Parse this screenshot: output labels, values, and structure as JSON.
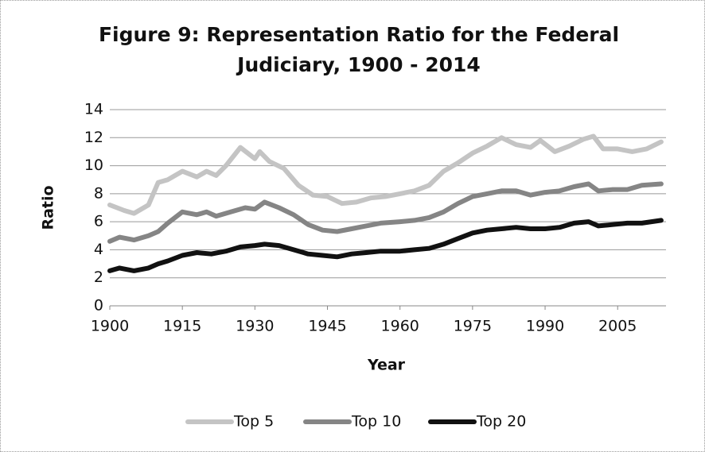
{
  "chart_data": {
    "type": "line",
    "title": "Figure 9: Representation Ratio for the Federal Judiciary, 1900 - 2014",
    "xlabel": "Year",
    "ylabel": "Ratio",
    "xlim": [
      1900,
      2015
    ],
    "xticks": [
      1900,
      1915,
      1930,
      1945,
      1960,
      1975,
      1990,
      2005
    ],
    "ylim": [
      0,
      14
    ],
    "yticks": [
      0,
      2,
      4,
      6,
      8,
      10,
      12,
      14
    ],
    "grid": true,
    "legend": "bottom",
    "series": [
      {
        "name": "Top 5",
        "color": "#c4c4c4",
        "x": [
          1900,
          1903,
          1905,
          1908,
          1910,
          1912,
          1915,
          1918,
          1920,
          1922,
          1924,
          1927,
          1930,
          1931,
          1933,
          1936,
          1939,
          1942,
          1945,
          1948,
          1951,
          1954,
          1957,
          1960,
          1963,
          1966,
          1969,
          1972,
          1975,
          1978,
          1981,
          1984,
          1987,
          1989,
          1992,
          1995,
          1998,
          2000,
          2002,
          2005,
          2008,
          2011,
          2014
        ],
        "values": [
          7.2,
          6.8,
          6.6,
          7.2,
          8.8,
          9.0,
          9.6,
          9.2,
          9.6,
          9.3,
          10.0,
          11.3,
          10.5,
          11.0,
          10.3,
          9.8,
          8.6,
          7.9,
          7.8,
          7.3,
          7.4,
          7.7,
          7.8,
          8.0,
          8.2,
          8.6,
          9.6,
          10.2,
          10.9,
          11.4,
          12.0,
          11.5,
          11.3,
          11.8,
          11.0,
          11.4,
          11.9,
          12.1,
          11.2,
          11.2,
          11.0,
          11.2,
          11.7
        ]
      },
      {
        "name": "Top 10",
        "color": "#858585",
        "x": [
          1900,
          1902,
          1905,
          1908,
          1910,
          1912,
          1915,
          1918,
          1920,
          1922,
          1925,
          1928,
          1930,
          1932,
          1935,
          1938,
          1941,
          1944,
          1947,
          1950,
          1953,
          1956,
          1960,
          1963,
          1966,
          1969,
          1972,
          1975,
          1978,
          1981,
          1984,
          1987,
          1990,
          1993,
          1996,
          1999,
          2001,
          2004,
          2007,
          2010,
          2014
        ],
        "values": [
          4.6,
          4.9,
          4.7,
          5.0,
          5.3,
          5.9,
          6.7,
          6.5,
          6.7,
          6.4,
          6.7,
          7.0,
          6.9,
          7.4,
          7.0,
          6.5,
          5.8,
          5.4,
          5.3,
          5.5,
          5.7,
          5.9,
          6.0,
          6.1,
          6.3,
          6.7,
          7.3,
          7.8,
          8.0,
          8.2,
          8.2,
          7.9,
          8.1,
          8.2,
          8.5,
          8.7,
          8.2,
          8.3,
          8.3,
          8.6,
          8.7
        ]
      },
      {
        "name": "Top 20",
        "color": "#111111",
        "x": [
          1900,
          1902,
          1905,
          1908,
          1910,
          1912,
          1915,
          1918,
          1921,
          1924,
          1927,
          1930,
          1932,
          1935,
          1938,
          1941,
          1944,
          1947,
          1950,
          1953,
          1956,
          1960,
          1963,
          1966,
          1969,
          1972,
          1975,
          1978,
          1981,
          1984,
          1987,
          1990,
          1993,
          1996,
          1999,
          2001,
          2004,
          2007,
          2010,
          2014
        ],
        "values": [
          2.5,
          2.7,
          2.5,
          2.7,
          3.0,
          3.2,
          3.6,
          3.8,
          3.7,
          3.9,
          4.2,
          4.3,
          4.4,
          4.3,
          4.0,
          3.7,
          3.6,
          3.5,
          3.7,
          3.8,
          3.9,
          3.9,
          4.0,
          4.1,
          4.4,
          4.8,
          5.2,
          5.4,
          5.5,
          5.6,
          5.5,
          5.5,
          5.6,
          5.9,
          6.0,
          5.7,
          5.8,
          5.9,
          5.9,
          6.1
        ]
      }
    ]
  }
}
